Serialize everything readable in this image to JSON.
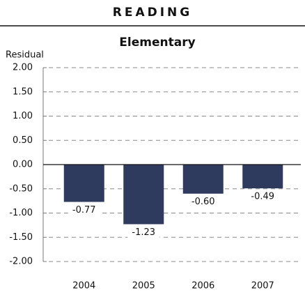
{
  "header": "READING",
  "chart_data": {
    "type": "bar",
    "title": "Elementary",
    "y_label": "Residual",
    "categories": [
      "2004",
      "2005",
      "2006",
      "2007"
    ],
    "values": [
      -0.77,
      -1.23,
      -0.6,
      -0.49
    ],
    "value_labels": [
      "-0.77",
      "-1.23",
      "-0.60",
      "-0.49"
    ],
    "color": "#2f3b5e",
    "ylim": [
      -2,
      2
    ],
    "yticks": [
      {
        "value": -2,
        "label": "-2.00"
      },
      {
        "value": -1.5,
        "label": "-1.50"
      },
      {
        "value": -1,
        "label": "-1.00"
      },
      {
        "value": -0.5,
        "label": "-0.50"
      },
      {
        "value": 0,
        "label": "0.00"
      },
      {
        "value": 0.5,
        "label": "0.50"
      },
      {
        "value": 1,
        "label": "1.00"
      },
      {
        "value": 1.5,
        "label": "1.50"
      },
      {
        "value": 2,
        "label": "2.00"
      }
    ],
    "grid": true
  }
}
